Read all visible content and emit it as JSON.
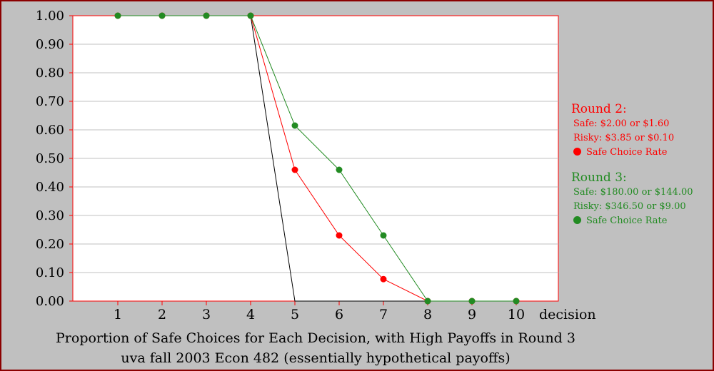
{
  "chart_data": {
    "type": "line",
    "categories": [
      "1",
      "2",
      "3",
      "4",
      "5",
      "6",
      "7",
      "8",
      "9",
      "10"
    ],
    "x": [
      1,
      2,
      3,
      4,
      5,
      6,
      7,
      8,
      9,
      10
    ],
    "xlabel": "decision",
    "ylabel": "",
    "ylim": [
      0,
      1
    ],
    "yticks": [
      "0.00",
      "0.10",
      "0.20",
      "0.30",
      "0.40",
      "0.50",
      "0.60",
      "0.70",
      "0.80",
      "0.90",
      "1.00"
    ],
    "grid": true,
    "legend_position": "right",
    "series": [
      {
        "name": "Round 2: Safe Choice Rate",
        "color": "#ff0000",
        "marker": "circle",
        "values": [
          1,
          1,
          1,
          1,
          0.46,
          0.23,
          0.077,
          0,
          0,
          0
        ]
      },
      {
        "name": "Round 3: Safe Choice Rate",
        "color": "#228b22",
        "marker": "circle",
        "values": [
          1,
          1,
          1,
          1,
          0.615,
          0.46,
          0.23,
          0,
          0,
          0
        ]
      },
      {
        "name": "",
        "color": "#000000",
        "marker": "none",
        "values": [
          1,
          1,
          1,
          1,
          0,
          0,
          0,
          0,
          0,
          0
        ]
      }
    ],
    "title_lines": [
      "Proportion of Safe Choices for Each Decision, with High Payoffs in Round 3",
      "uva fall 2003 Econ 482 (essentially hypothetical payoffs)"
    ]
  },
  "legend": {
    "round2": {
      "title": "Round 2:",
      "safe": "Safe:   $2.00 or $1.60",
      "risky": "Risky: $3.85 or $0.10",
      "rate": "Safe Choice Rate",
      "color": "#ff0000"
    },
    "round3": {
      "title": "Round 3:",
      "safe": "Safe:   $180.00 or $144.00",
      "risky": "Risky: $346.50 or $9.00",
      "rate": "Safe Choice Rate",
      "color": "#228b22"
    }
  }
}
